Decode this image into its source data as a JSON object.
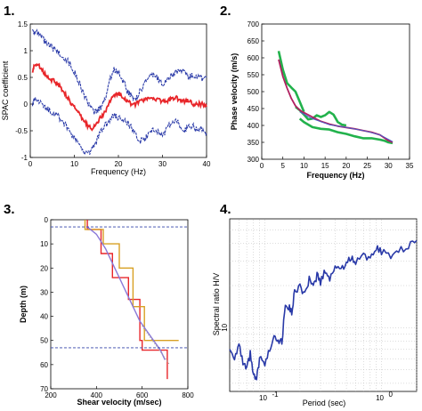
{
  "panels": [
    {
      "number": "1."
    },
    {
      "number": "2."
    },
    {
      "number": "3."
    },
    {
      "number": "4."
    }
  ],
  "chart_data": [
    {
      "type": "line",
      "title": "",
      "xlabel": "Frequency (Hz)",
      "ylabel": "SPAC coefficient",
      "xlim": [
        0,
        40
      ],
      "ylim": [
        -1,
        1.5
      ],
      "xticks": [
        "0",
        "10",
        "20",
        "30",
        "40"
      ],
      "yticks": [
        "-1",
        "-0.5",
        "0",
        "0.5",
        "1",
        "1.5"
      ],
      "series": [
        {
          "color": "#2a3aa8",
          "style": "dashed-noisy",
          "x": [
            0.5,
            1,
            2,
            3,
            4,
            5,
            6,
            7,
            8,
            9,
            10,
            11,
            12,
            13,
            14,
            15,
            16,
            17,
            18,
            19,
            20,
            21,
            22,
            23,
            24,
            25,
            26,
            27,
            28,
            29,
            30,
            31,
            32,
            33,
            34,
            35,
            36,
            37,
            38,
            39,
            40
          ],
          "values": [
            1.4,
            1.35,
            1.3,
            1.2,
            1.1,
            1.05,
            1.0,
            0.92,
            0.85,
            0.75,
            0.6,
            0.42,
            0.22,
            0.02,
            -0.12,
            -0.15,
            -0.05,
            0.1,
            0.45,
            0.65,
            0.6,
            0.45,
            0.25,
            0.15,
            0.1,
            0.25,
            0.42,
            0.5,
            0.55,
            0.47,
            0.38,
            0.45,
            0.52,
            0.6,
            0.64,
            0.6,
            0.5,
            0.55,
            0.52,
            0.48,
            0.5
          ]
        },
        {
          "color": "#e8262a",
          "style": "solid",
          "x": [
            0.5,
            1,
            2,
            3,
            4,
            5,
            6,
            7,
            8,
            9,
            10,
            11,
            12,
            13,
            14,
            15,
            16,
            17,
            18,
            19,
            20,
            21,
            22,
            23,
            24,
            25,
            26,
            27,
            28,
            29,
            30,
            31,
            32,
            33,
            34,
            35,
            36,
            37,
            38,
            39,
            40
          ],
          "values": [
            0.6,
            0.75,
            0.72,
            0.6,
            0.5,
            0.45,
            0.4,
            0.3,
            0.18,
            0.05,
            -0.05,
            -0.18,
            -0.3,
            -0.4,
            -0.45,
            -0.38,
            -0.25,
            -0.15,
            0.05,
            0.15,
            0.2,
            0.15,
            0.05,
            0.0,
            0.0,
            0.05,
            0.08,
            0.1,
            0.12,
            0.08,
            0.05,
            0.05,
            0.1,
            0.12,
            0.08,
            0.05,
            0.08,
            -0.02,
            0.0,
            0.0,
            -0.05
          ]
        },
        {
          "color": "#2a3aa8",
          "style": "dashed-noisy",
          "x": [
            0.5,
            1,
            2,
            3,
            4,
            5,
            6,
            7,
            8,
            9,
            10,
            11,
            12,
            13,
            14,
            15,
            16,
            17,
            18,
            19,
            20,
            21,
            22,
            23,
            24,
            25,
            26,
            27,
            28,
            29,
            30,
            31,
            32,
            33,
            34,
            35,
            36,
            37,
            38,
            39,
            40
          ],
          "values": [
            0.0,
            0.1,
            0.05,
            -0.05,
            -0.1,
            -0.15,
            -0.2,
            -0.3,
            -0.4,
            -0.55,
            -0.65,
            -0.75,
            -0.85,
            -0.95,
            -0.85,
            -0.7,
            -0.5,
            -0.4,
            -0.3,
            -0.2,
            -0.25,
            -0.3,
            -0.35,
            -0.45,
            -0.6,
            -0.7,
            -0.65,
            -0.55,
            -0.5,
            -0.5,
            -0.6,
            -0.45,
            -0.35,
            -0.3,
            -0.4,
            -0.5,
            -0.4,
            -0.42,
            -0.5,
            -0.45,
            -0.55
          ]
        }
      ]
    },
    {
      "type": "line",
      "title": "",
      "xlabel": "Frequency (Hz)",
      "ylabel": "Phase velocity (m/s)",
      "xlim": [
        0,
        35
      ],
      "ylim": [
        300,
        700
      ],
      "xticks": [
        "0",
        "5",
        "10",
        "15",
        "20",
        "25",
        "30",
        "35"
      ],
      "yticks": [
        "300",
        "350",
        "400",
        "450",
        "500",
        "550",
        "600",
        "650",
        "700"
      ],
      "series": [
        {
          "color": "#22b24c",
          "x": [
            4,
            5,
            6,
            7,
            8,
            9,
            10
          ],
          "values": [
            620,
            565,
            525,
            512,
            500,
            470,
            440
          ]
        },
        {
          "color": "#22b24c",
          "x": [
            8,
            9,
            10,
            11,
            12,
            13,
            14,
            15,
            16,
            17,
            18,
            19,
            20
          ],
          "values": [
            455,
            445,
            432,
            418,
            420,
            430,
            425,
            430,
            440,
            432,
            410,
            402,
            400
          ]
        },
        {
          "color": "#22b24c",
          "x": [
            9,
            10,
            12,
            14,
            16,
            18,
            20,
            22,
            24,
            26,
            28,
            29,
            30,
            31
          ],
          "values": [
            420,
            410,
            395,
            390,
            388,
            380,
            375,
            368,
            362,
            362,
            358,
            355,
            350,
            348
          ]
        },
        {
          "color": "#b02060",
          "x": [
            4,
            5,
            6,
            7,
            8,
            9,
            10,
            12,
            14,
            16,
            18,
            20,
            22,
            24,
            26,
            28,
            30,
            31
          ],
          "values": [
            595,
            545,
            510,
            480,
            458,
            445,
            438,
            425,
            412,
            404,
            398,
            394,
            390,
            385,
            380,
            372,
            355,
            350
          ]
        },
        {
          "color": "#4a5ac8",
          "x": [
            9,
            12,
            16,
            20,
            24,
            28,
            31
          ],
          "values": [
            440,
            420,
            402,
            394,
            385,
            372,
            352
          ]
        }
      ]
    },
    {
      "type": "line",
      "title": "",
      "xlabel": "Shear velocity (m/sec)",
      "ylabel": "Depth (m)",
      "xlim": [
        200,
        800
      ],
      "ylim": [
        70,
        0
      ],
      "xticks": [
        "200",
        "400",
        "600",
        "800"
      ],
      "yticks": [
        "0",
        "10",
        "20",
        "30",
        "40",
        "50",
        "60",
        "70"
      ],
      "series": [
        {
          "color": "#e8262a",
          "x": [
            360,
            360,
            420,
            420,
            470,
            470,
            540,
            540,
            590,
            590,
            600,
            600,
            710,
            710
          ],
          "values": [
            0,
            4,
            4,
            14,
            14,
            24,
            24,
            33,
            33,
            50,
            50,
            54,
            54,
            66
          ]
        },
        {
          "color": "#d8a024",
          "x": [
            350,
            350,
            430,
            430,
            500,
            500,
            560,
            560,
            610,
            610,
            760
          ],
          "values": [
            0,
            4,
            4,
            10,
            10,
            20,
            20,
            36,
            36,
            50,
            50
          ]
        },
        {
          "color": "#8a78d8",
          "x": [
            360,
            400,
            440,
            470,
            500,
            530,
            560,
            590,
            620,
            650,
            680,
            700
          ],
          "values": [
            3,
            6,
            12,
            18,
            24,
            30,
            36,
            42,
            46,
            50,
            54,
            58
          ]
        },
        {
          "color": "#999999",
          "style": "dotted",
          "x": [
            600,
            630,
            660,
            690,
            720
          ],
          "values": [
            44,
            48,
            52,
            56,
            60
          ]
        },
        {
          "color": "#3344aa",
          "style": "dashed",
          "x": [
            200,
            800
          ],
          "values": [
            3,
            3
          ]
        },
        {
          "color": "#3344aa",
          "style": "dashed",
          "x": [
            200,
            800
          ],
          "values": [
            53,
            53
          ]
        }
      ]
    },
    {
      "type": "line",
      "title": "",
      "xlabel": "Period (sec)",
      "ylabel": "Spectral ratio H/V",
      "xscale": "log",
      "yscale": "log",
      "xlim": [
        0.05,
        2
      ],
      "ylim": [
        0.35,
        6
      ],
      "xtick_labels": [
        "10",
        "10"
      ],
      "xtick_exponents": [
        "-1",
        "0"
      ],
      "ytick_labels": [
        "10"
      ],
      "ytick_exponents": [
        "0"
      ],
      "series": [
        {
          "color": "#2a3aa8",
          "x": [
            0.05,
            0.055,
            0.06,
            0.065,
            0.07,
            0.075,
            0.08,
            0.085,
            0.09,
            0.1,
            0.11,
            0.12,
            0.13,
            0.14,
            0.15,
            0.16,
            0.17,
            0.18,
            0.2,
            0.22,
            0.24,
            0.26,
            0.28,
            0.3,
            0.33,
            0.36,
            0.4,
            0.45,
            0.5,
            0.55,
            0.6,
            0.7,
            0.8,
            0.9,
            1.0,
            1.2,
            1.4,
            1.7,
            2.0
          ],
          "values": [
            0.7,
            0.62,
            0.75,
            0.55,
            0.5,
            0.65,
            0.45,
            0.42,
            0.6,
            0.55,
            0.7,
            0.9,
            0.82,
            0.78,
            1.5,
            1.4,
            1.3,
            1.8,
            2.0,
            1.7,
            2.2,
            1.9,
            2.4,
            2.1,
            2.6,
            2.2,
            2.8,
            2.6,
            2.9,
            3.2,
            2.9,
            3.5,
            3.0,
            3.8,
            3.5,
            3.3,
            3.6,
            3.8,
            4.2
          ]
        }
      ]
    }
  ]
}
